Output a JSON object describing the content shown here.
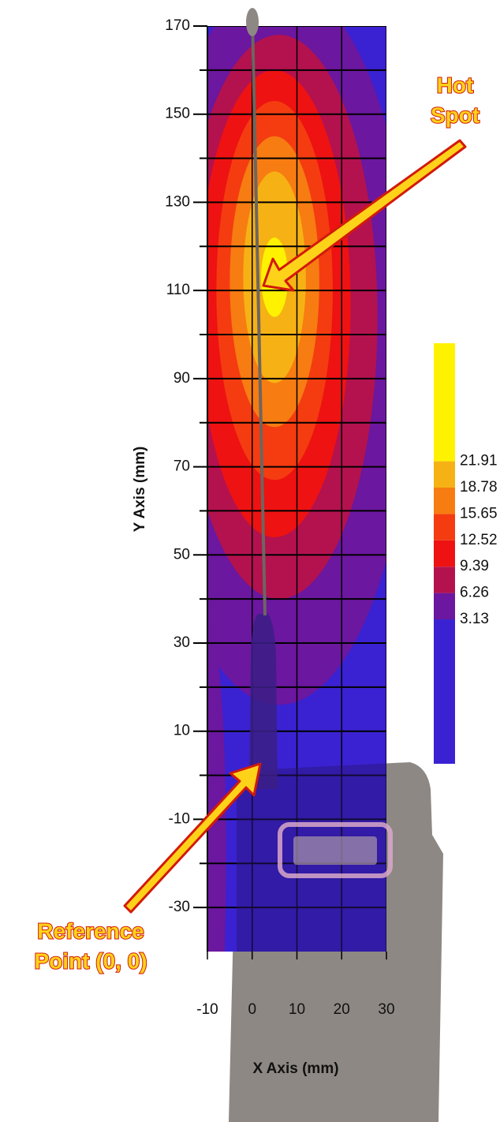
{
  "chart_data": {
    "type": "contour",
    "x_label": "X Axis (mm)",
    "y_label": "Y Axis (mm)",
    "xlim": [
      -10,
      30
    ],
    "xticks": [
      -10,
      0,
      10,
      20,
      30
    ],
    "ylim": [
      -40,
      170
    ],
    "yticks": [
      170,
      150,
      130,
      110,
      90,
      70,
      50,
      30,
      10,
      -10,
      -30
    ],
    "y_minor_ticks": [
      160,
      140,
      120,
      100,
      80,
      60,
      40,
      20,
      0,
      -20
    ],
    "levels": [
      3.13,
      6.26,
      9.39,
      12.52,
      15.65,
      18.78,
      21.91
    ],
    "colors": [
      "#3a22d2",
      "#6b179f",
      "#b3124e",
      "#ee1212",
      "#f43c10",
      "#f77c12",
      "#f6b214",
      "#fff200"
    ],
    "grid": true,
    "annotations": [
      {
        "text": [
          "Hot",
          "Spot"
        ]
      },
      {
        "text": [
          "Reference",
          "Point (0, 0)"
        ]
      }
    ]
  }
}
